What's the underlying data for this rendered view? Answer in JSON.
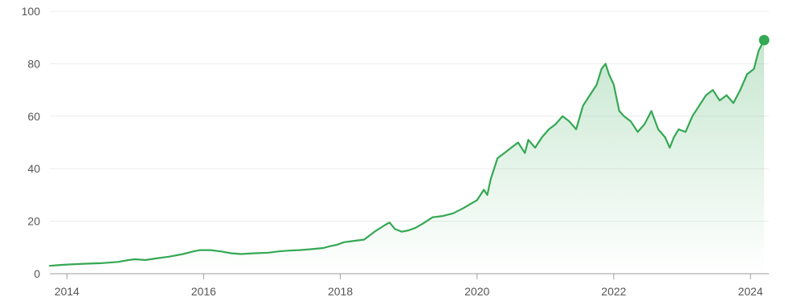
{
  "chart_data": {
    "type": "area",
    "title": "",
    "xlabel": "",
    "ylabel": "",
    "xlim": [
      2013.75,
      2024.27
    ],
    "ylim": [
      0,
      100
    ],
    "grid": true,
    "y_ticks": [
      "0",
      "20",
      "40",
      "60",
      "80",
      "100"
    ],
    "x_ticks": [
      "2014",
      "2016",
      "2018",
      "2020",
      "2022",
      "2024"
    ],
    "colors": {
      "line": "#34a853",
      "fill": "#34a853",
      "grid": "#ececec",
      "axis": "#9e9e9e",
      "text": "#555555"
    },
    "series": [
      {
        "x": [
          2013.75,
          2013.85,
          2014.0,
          2014.25,
          2014.5,
          2014.75,
          2014.9,
          2015.0,
          2015.15,
          2015.3,
          2015.5,
          2015.7,
          2015.85,
          2015.95,
          2016.1,
          2016.25,
          2016.4,
          2016.55,
          2016.75,
          2016.95,
          2017.1,
          2017.25,
          2017.4,
          2017.55,
          2017.75,
          2017.85,
          2017.95,
          2018.05,
          2018.2,
          2018.35,
          2018.5,
          2018.65,
          2018.72,
          2018.8,
          2018.9,
          2019.0,
          2019.1,
          2019.2,
          2019.35,
          2019.5,
          2019.65,
          2019.8,
          2019.9,
          2020.0,
          2020.1,
          2020.15,
          2020.2,
          2020.3,
          2020.4,
          2020.5,
          2020.6,
          2020.7,
          2020.75,
          2020.85,
          2020.95,
          2021.05,
          2021.15,
          2021.25,
          2021.35,
          2021.45,
          2021.55,
          2021.65,
          2021.75,
          2021.82,
          2021.88,
          2021.93,
          2022.0,
          2022.08,
          2022.15,
          2022.25,
          2022.35,
          2022.45,
          2022.55,
          2022.65,
          2022.75,
          2022.82,
          2022.88,
          2022.95,
          2023.05,
          2023.15,
          2023.25,
          2023.35,
          2023.45,
          2023.55,
          2023.65,
          2023.75,
          2023.85,
          2023.95,
          2024.05,
          2024.12,
          2024.2
        ],
        "y": [
          3,
          3.2,
          3.5,
          3.8,
          4.0,
          4.5,
          5.2,
          5.5,
          5.2,
          5.8,
          6.5,
          7.5,
          8.5,
          9.0,
          9.0,
          8.5,
          7.8,
          7.5,
          7.8,
          8.0,
          8.5,
          8.8,
          9.0,
          9.3,
          9.8,
          10.5,
          11.0,
          12.0,
          12.5,
          13.0,
          16.0,
          18.5,
          19.5,
          17.0,
          16.0,
          16.5,
          17.5,
          19.0,
          21.5,
          22.0,
          23.0,
          25.0,
          26.5,
          28.0,
          32.0,
          30.0,
          36.0,
          44.0,
          46.0,
          48.0,
          50.0,
          46.0,
          51.0,
          48.0,
          52.0,
          55.0,
          57.0,
          60.0,
          58.0,
          55.0,
          64.0,
          68.0,
          72.0,
          78.0,
          80.0,
          76.0,
          72.0,
          62.0,
          60.0,
          58.0,
          54.0,
          57.0,
          62.0,
          55.0,
          52.0,
          48.0,
          52.0,
          55.0,
          54.0,
          60.0,
          64.0,
          68.0,
          70.0,
          66.0,
          68.0,
          65.0,
          70.0,
          76.0,
          78.0,
          85.0,
          89.0
        ]
      }
    ],
    "last_point": {
      "x": 2024.2,
      "y": 89.0
    }
  }
}
